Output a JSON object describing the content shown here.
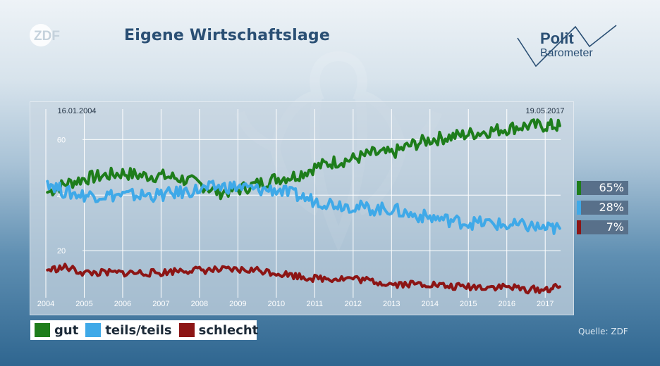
{
  "title": "Eigene Wirtschaftslage",
  "brand": {
    "zdf_logo": "ZDF",
    "polit_top": "Polit",
    "polit_bottom": "Barometer"
  },
  "source": "Quelle: ZDF",
  "colors": {
    "gut": "#1e7d1b",
    "teils": "#3fa9e8",
    "schlecht": "#8c1515",
    "badge_bg": "#58708a",
    "title": "#2a4f74"
  },
  "badges": [
    {
      "series": "gut",
      "value": "65%",
      "color": "#1e7d1b"
    },
    {
      "series": "teils/teils",
      "value": "28%",
      "color": "#3fa9e8"
    },
    {
      "series": "schlecht",
      "value": "7%",
      "color": "#8c1515"
    }
  ],
  "chart_data": {
    "type": "line",
    "title": "Eigene Wirtschaftslage",
    "start_label": "16.01.2004",
    "end_label": "19.05.2017",
    "xlim": [
      2004,
      2017.4
    ],
    "ylim": [
      0,
      70
    ],
    "grid": true,
    "legend_position": "bottom-left",
    "x_ticks": [
      "2004",
      "2005",
      "2006",
      "2007",
      "2008",
      "2009",
      "2010",
      "2011",
      "2012",
      "2013",
      "2014",
      "2015",
      "2016",
      "2017"
    ],
    "y_ticks": [
      "20",
      "40",
      "60"
    ],
    "y_tick_values": [
      20,
      40,
      60
    ],
    "x": [
      2004.04,
      2004.5,
      2005.0,
      2005.5,
      2006.0,
      2006.5,
      2007.0,
      2007.5,
      2008.0,
      2008.5,
      2009.0,
      2009.5,
      2010.0,
      2010.5,
      2011.0,
      2011.5,
      2012.0,
      2012.5,
      2013.0,
      2013.5,
      2014.0,
      2014.5,
      2015.0,
      2015.5,
      2016.0,
      2016.5,
      2017.0,
      2017.38
    ],
    "series": [
      {
        "name": "gut",
        "color": "#1e7d1b",
        "values": [
          41,
          44,
          46,
          47,
          48,
          47,
          47,
          46,
          44,
          41,
          42,
          44,
          46,
          47,
          50,
          52,
          53,
          55,
          55,
          58,
          60,
          61,
          62,
          63,
          64,
          65,
          65,
          65
        ]
      },
      {
        "name": "teils/teils",
        "color": "#3fa9e8",
        "values": [
          45,
          41,
          40,
          40,
          40,
          40,
          40,
          41,
          42,
          43,
          43,
          42,
          42,
          40,
          38,
          37,
          36,
          35,
          35,
          33,
          32,
          31,
          30,
          30,
          29,
          29,
          28,
          28
        ]
      },
      {
        "name": "schlecht",
        "color": "#8c1515",
        "values": [
          13,
          14,
          12,
          12,
          12,
          12,
          12,
          13,
          13,
          13,
          13,
          13,
          12,
          11,
          10,
          10,
          10,
          9,
          8,
          8,
          8,
          7,
          7,
          7,
          7,
          6,
          6,
          7
        ]
      }
    ]
  },
  "legend": [
    {
      "label": "gut",
      "color": "#1e7d1b"
    },
    {
      "label": "teils/teils",
      "color": "#3fa9e8"
    },
    {
      "label": "schlecht",
      "color": "#8c1515"
    }
  ]
}
